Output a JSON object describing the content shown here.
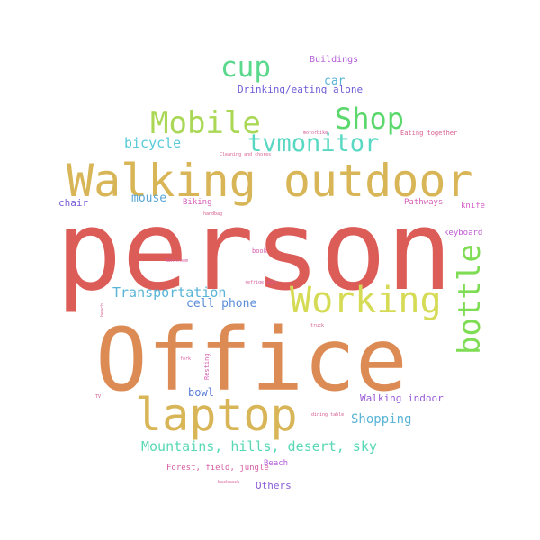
{
  "words": [
    {
      "text": "person",
      "color": "#dc5c57"
    },
    {
      "text": "Office",
      "color": "#dd8b55"
    },
    {
      "text": "Walking outdoor",
      "color": "#d8b556"
    },
    {
      "text": "laptop",
      "color": "#d8b556"
    },
    {
      "text": "Working",
      "color": "#d6db56"
    },
    {
      "text": "Mobile",
      "color": "#aad856"
    },
    {
      "text": "Shop",
      "color": "#5ad86c"
    },
    {
      "text": "cup",
      "color": "#5ad88c"
    },
    {
      "text": "tvmonitor",
      "color": "#58d8c3"
    },
    {
      "text": "bottle",
      "color": "#7fdc55"
    },
    {
      "text": "bicycle",
      "color": "#58cbd8"
    },
    {
      "text": "Transportation",
      "color": "#59b4d6"
    },
    {
      "text": "Mountains, hills, desert, sky",
      "color": "#58d8b5"
    },
    {
      "text": "cell phone",
      "color": "#5a8cd8"
    },
    {
      "text": "Shopping",
      "color": "#59b4d6"
    },
    {
      "text": "Drinking/eating alone",
      "color": "#6d5cd6"
    },
    {
      "text": "car",
      "color": "#59b4d6"
    },
    {
      "text": "Buildings",
      "color": "#b45cd6"
    },
    {
      "text": "mouse",
      "color": "#5aa6d8"
    },
    {
      "text": "chair",
      "color": "#7a5cd6"
    },
    {
      "text": "Biking",
      "color": "#d65cb8"
    },
    {
      "text": "bowl",
      "color": "#5a7ed8"
    },
    {
      "text": "Walking indoor",
      "color": "#9a5cd6"
    },
    {
      "text": "Pathways",
      "color": "#d65cb8"
    },
    {
      "text": "knife",
      "color": "#d65cc8"
    },
    {
      "text": "keyboard",
      "color": "#c25cd6"
    },
    {
      "text": "Forest, field, jungle",
      "color": "#d65ca4"
    },
    {
      "text": "Beach",
      "color": "#b45cd6"
    },
    {
      "text": "Others",
      "color": "#8a5cd6"
    },
    {
      "text": "Eating together",
      "color": "#d65c8c"
    },
    {
      "text": "motorbike",
      "color": "#d65c9c"
    },
    {
      "text": "Cleaning and chores",
      "color": "#d65c8c"
    },
    {
      "text": "handbag",
      "color": "#d65c8c"
    },
    {
      "text": "book",
      "color": "#d65cb0"
    },
    {
      "text": "Bathroom",
      "color": "#d65c9c"
    },
    {
      "text": "refrigerator",
      "color": "#d65c9c"
    },
    {
      "text": "beach",
      "color": "#d65c8c"
    },
    {
      "text": "truck",
      "color": "#d65c8c"
    },
    {
      "text": "fork",
      "color": "#d65ca4"
    },
    {
      "text": "Resting",
      "color": "#d65cb0"
    },
    {
      "text": "TV",
      "color": "#d65c8c"
    },
    {
      "text": "dining table",
      "color": "#d65c8c"
    },
    {
      "text": "backpack",
      "color": "#d65c9c"
    }
  ]
}
